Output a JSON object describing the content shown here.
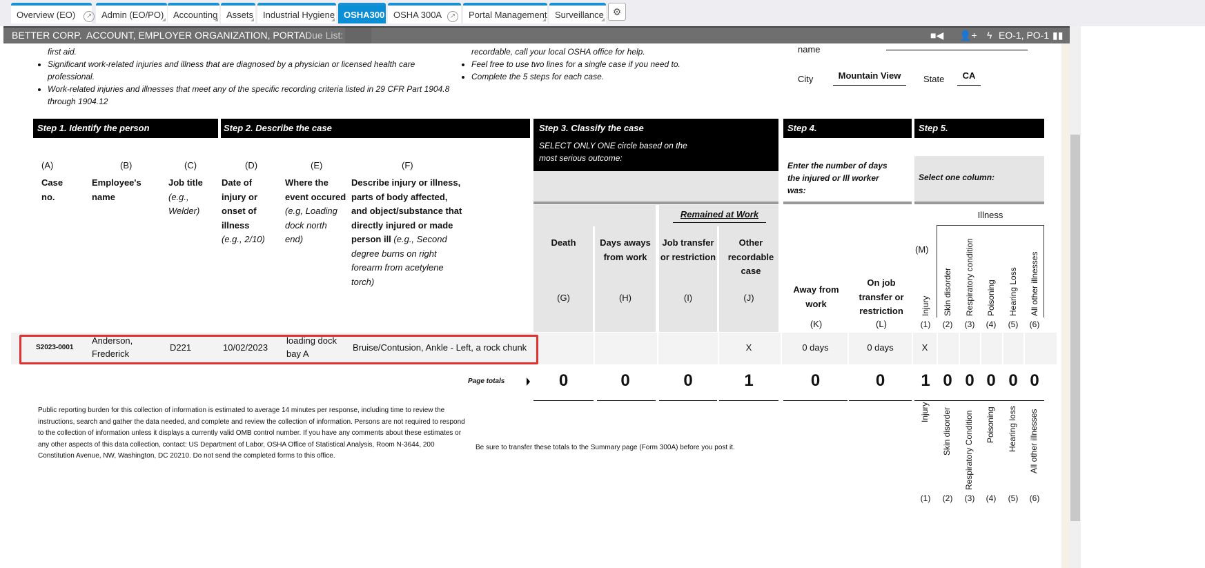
{
  "tabs": [
    {
      "label": "Overview (EO)",
      "ext": true
    },
    {
      "label": "Admin (EO/PO)"
    },
    {
      "label": "Accounting"
    },
    {
      "label": "Assets"
    },
    {
      "label": "Industrial Hygiene"
    },
    {
      "label": "OSHA300",
      "active": true
    },
    {
      "label": "OSHA 300A",
      "ext": true
    },
    {
      "label": "Portal Management"
    },
    {
      "label": "Surveillance"
    }
  ],
  "header": {
    "company": "BETTER CORP.",
    "context": "ACCOUNT, EMPLOYER ORGANIZATION, PORTAL",
    "due_list": "Due List:",
    "user": "EO-1, PO-1"
  },
  "intro": {
    "left": [
      "first aid.",
      "Significant work-related injuries and illness that are diagnosed by a physician or licensed health care professional.",
      "Work-related injuries and illnesses that meet any of the specific recording criteria listed in 29 CFR Part 1904.8 through 1904.12"
    ],
    "middle": [
      "recordable, call your local OSHA office for help.",
      "Feel free to use two lines for a single case if you need to.",
      "Complete the 5 steps for each case."
    ],
    "name_label": "name",
    "city_label": "City",
    "city": "Mountain View",
    "state_label": "State",
    "state": "CA"
  },
  "steps": {
    "s1": "Step 1. Identify the person",
    "s2": "Step 2. Describe the case",
    "s3": "Step 3. Classify the case",
    "s3_sub": "SELECT ONLY ONE circle based on the most serious outcome:",
    "s4": "Step 4.",
    "s4_sub": "Enter the number of days the injured or Ill worker was:",
    "s5": "Step 5.",
    "s5_sub": "Select one column:"
  },
  "columns": {
    "A": {
      "letter": "(A)",
      "title": "Case no."
    },
    "B": {
      "letter": "(B)",
      "title": "Employee's name"
    },
    "C": {
      "letter": "(C)",
      "title": "Job title",
      "hint": "(e.g., Welder)"
    },
    "D": {
      "letter": "(D)",
      "title": "Date of injury or onset of illness",
      "hint": "(e.g., 2/10)"
    },
    "E": {
      "letter": "(E)",
      "title": "Where the event occured",
      "hint": "(e.g, Loading dock north end)"
    },
    "F": {
      "letter": "(F)",
      "title": "Describe injury or illness, parts of body affected, and object/substance that directly injured or made person ill",
      "hint": "(e.g., Second degree burns on right forearm from acetylene torch)"
    },
    "remained": "Remained at Work",
    "G": {
      "title": "Death",
      "letter": "(G)"
    },
    "H": {
      "title": "Days aways from work",
      "letter": "(H)"
    },
    "I": {
      "title": "Job transfer or restriction",
      "letter": "(I)"
    },
    "J": {
      "title": "Other recordable case",
      "letter": "(J)"
    },
    "K": {
      "title": "Away from work",
      "letter": "(K)"
    },
    "L": {
      "title": "On job transfer or restriction",
      "letter": "(L)"
    },
    "M": "(M)",
    "illness": "Illness",
    "types": [
      {
        "t": "Injury",
        "n": "(1)"
      },
      {
        "t": "Skin disorder",
        "n": "(2)"
      },
      {
        "t": "Respiratory condition",
        "n": "(3)"
      },
      {
        "t": "Poisoning",
        "n": "(4)"
      },
      {
        "t": "Hearing Loss",
        "n": "(5)"
      },
      {
        "t": "All other illnesses",
        "n": "(6)"
      }
    ]
  },
  "row": {
    "case": "S2023-0001",
    "name": "Anderson, Frederick",
    "job": "D221",
    "date": "10/02/2023",
    "where": "loading dock bay A",
    "desc": "Bruise/Contusion, Ankle - Left, a rock chunk",
    "G": "",
    "H": "",
    "I": "",
    "J": "X",
    "K": "0 days",
    "L": "0 days",
    "type1": "X"
  },
  "totals": {
    "label": "Page totals",
    "G": "0",
    "H": "0",
    "I": "0",
    "J": "1",
    "K": "0",
    "L": "0",
    "t1": "1",
    "t2": "0",
    "t3": "0",
    "t4": "0",
    "t5": "0",
    "t6": "0"
  },
  "footer": {
    "burden": "Public reporting burden for this collection of information is estimated to average 14 minutes per response, including time to review the instructions, search and gather the data needed, and complete and review the collection of information. Persons are not required to respond to the collection of information unless it displays a currently valid OMB control number. If you have any comments about these estimates or any other aspects of this data collection, contact: US Department of Labor, OSHA Office of Statistical Analysis, Room N-3644, 200 Constitution Avenue, NW, Washington, DC 20210. Do not send the completed forms to this office.",
    "transfer": "Be sure to transfer these totals to the Summary page (Form 300A) before you post it.",
    "types": [
      {
        "t": "Injury",
        "n": "(1)"
      },
      {
        "t": "Skin disorder",
        "n": "(2)"
      },
      {
        "t": "Respiratory Condition",
        "n": "(3)"
      },
      {
        "t": "Poisoning",
        "n": "(4)"
      },
      {
        "t": "Hearing loss",
        "n": "(5)"
      },
      {
        "t": "All other illnesses",
        "n": "(6)"
      }
    ]
  },
  "highlight_color": "#e03030",
  "accent": "#0a8fd6"
}
